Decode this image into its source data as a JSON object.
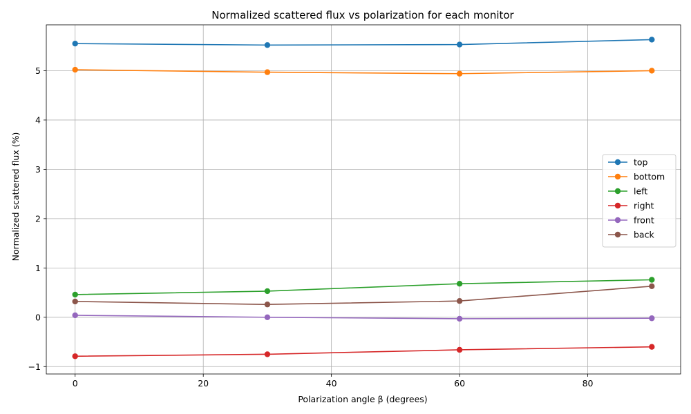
{
  "chart_data": {
    "type": "line",
    "title": "Normalized scattered flux vs polarization for each monitor",
    "xlabel": "Polarization angle β (degrees)",
    "ylabel": "Normalized scattered flux (%)",
    "xlim": [
      -4.5,
      94.5
    ],
    "ylim": [
      -1.15,
      5.93
    ],
    "xticks": [
      0,
      20,
      40,
      60,
      80
    ],
    "yticks": [
      -1,
      0,
      1,
      2,
      3,
      4,
      5
    ],
    "grid": true,
    "legend_position": "center-right",
    "x": [
      0,
      30,
      60,
      90
    ],
    "series": [
      {
        "name": "top",
        "color": "#1f77b4",
        "values": [
          5.55,
          5.52,
          5.53,
          5.63
        ]
      },
      {
        "name": "bottom",
        "color": "#ff7f0e",
        "values": [
          5.02,
          4.97,
          4.94,
          5.0
        ]
      },
      {
        "name": "left",
        "color": "#2ca02c",
        "values": [
          0.46,
          0.53,
          0.68,
          0.76
        ]
      },
      {
        "name": "right",
        "color": "#d62728",
        "values": [
          -0.79,
          -0.75,
          -0.66,
          -0.6
        ]
      },
      {
        "name": "front",
        "color": "#9467bd",
        "values": [
          0.04,
          0.0,
          -0.03,
          -0.02
        ]
      },
      {
        "name": "back",
        "color": "#8c564b",
        "values": [
          0.32,
          0.26,
          0.33,
          0.63
        ]
      }
    ]
  }
}
